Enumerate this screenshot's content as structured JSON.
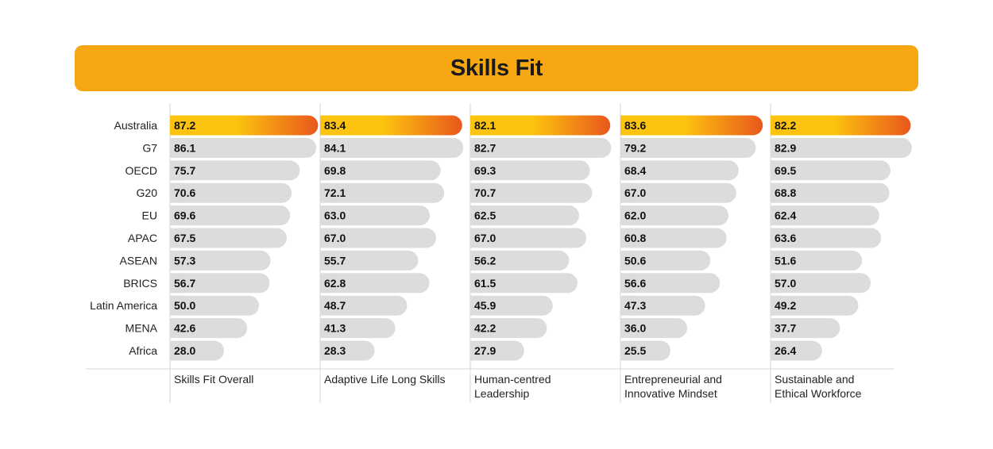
{
  "colors": {
    "banner": "#f6a712",
    "bar_gray": "#dcdcdc",
    "highlight_start": "#fcc30f",
    "highlight_end": "#e8571c",
    "divider": "#d6d6d6"
  },
  "chart_data": {
    "type": "bar",
    "orientation": "horizontal",
    "title": "Skills Fit",
    "highlight_category": "Australia",
    "categories": [
      "Australia",
      "G7",
      "OECD",
      "G20",
      "EU",
      "APAC",
      "ASEAN",
      "BRICS",
      "Latin America",
      "MENA",
      "Africa"
    ],
    "series": [
      {
        "name": "Skills Fit Overall",
        "values": [
          87.2,
          86.1,
          75.7,
          70.6,
          69.6,
          67.5,
          57.3,
          56.7,
          50.0,
          42.6,
          28.0
        ],
        "labels": [
          "87.2",
          "86.1",
          "75.7",
          "70.6",
          "69.6",
          "67.5",
          "57.3",
          "56.7",
          "50.0",
          "42.6",
          "28.0"
        ]
      },
      {
        "name": "Adaptive Life Long Skills",
        "values": [
          83.4,
          84.1,
          69.8,
          72.1,
          63.0,
          67.0,
          55.7,
          62.8,
          48.7,
          41.3,
          28.3
        ],
        "labels": [
          "83.4",
          "84.1",
          "69.8",
          "72.1",
          "63.0",
          "67.0",
          "55.7",
          "62.8",
          "48.7",
          "41.3",
          "28.3"
        ]
      },
      {
        "name": "Human-centred Leadership",
        "values": [
          82.1,
          82.7,
          69.3,
          70.7,
          62.5,
          67.0,
          56.2,
          61.5,
          45.9,
          42.2,
          27.9
        ],
        "labels": [
          "82.1",
          "82.7",
          "69.3",
          "70.7",
          "62.5",
          "67.0",
          "56.2",
          "61.5",
          "45.9",
          "42.2",
          "27.9"
        ]
      },
      {
        "name": "Entrepreneurial and Innovative Mindset",
        "values": [
          83.6,
          79.2,
          68.4,
          67.0,
          62.0,
          60.8,
          50.6,
          56.6,
          47.3,
          36.0,
          25.5
        ],
        "labels": [
          "83.6",
          "79.2",
          "68.4",
          "67.0",
          "62.0",
          "60.8",
          "50.6",
          "56.6",
          "47.3",
          "36.0",
          "25.5"
        ]
      },
      {
        "name": "Sustainable and Ethical Workforce",
        "values": [
          82.2,
          82.9,
          69.5,
          68.8,
          62.4,
          63.6,
          51.6,
          57.0,
          49.2,
          37.7,
          26.4
        ],
        "labels": [
          "82.2",
          "82.9",
          "69.5",
          "68.8",
          "62.4",
          "63.6",
          "51.6",
          "57.0",
          "49.2",
          "37.7",
          "26.4"
        ]
      }
    ],
    "column_labels": [
      [
        "Skills Fit Overall"
      ],
      [
        "Adaptive Life Long Skills"
      ],
      [
        "Human-centred",
        "Leadership"
      ],
      [
        "Entrepreneurial and",
        "Innovative Mindset"
      ],
      [
        "Sustainable and",
        "Ethical Workforce"
      ]
    ]
  }
}
